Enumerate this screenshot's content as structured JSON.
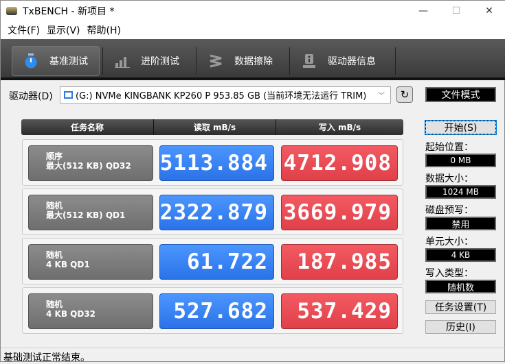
{
  "window": {
    "title": "TxBENCH - 新项目 *",
    "minimize": "—",
    "maximize": "☐",
    "close": "✕"
  },
  "menu": [
    "文件(F)",
    "显示(V)",
    "帮助(H)"
  ],
  "tabs": [
    {
      "label": "基准测试",
      "icon": "stopwatch-icon",
      "active": true
    },
    {
      "label": "进阶测试",
      "icon": "bar-chart-icon"
    },
    {
      "label": "数据擦除",
      "icon": "eraser-icon"
    },
    {
      "label": "驱动器信息",
      "icon": "drive-info-icon"
    }
  ],
  "drive": {
    "label": "驱动器(D)",
    "selected": "(G:) NVMe KINGBANK KP260 P  953.85 GB (当前环境无法运行 TRIM)",
    "refresh_icon": "refresh-icon"
  },
  "table": {
    "headers": [
      "任务名称",
      "读取 mB/s",
      "写入 mB/s"
    ],
    "rows": [
      {
        "name1": "顺序",
        "name2": "最大(512 KB) QD32",
        "read": "5113.884",
        "write": "4712.908"
      },
      {
        "name1": "随机",
        "name2": "最大(512 KB) QD1",
        "read": "2322.879",
        "write": "3669.979"
      },
      {
        "name1": "随机",
        "name2": "4 KB QD1",
        "read": "61.722",
        "write": "187.985"
      },
      {
        "name1": "随机",
        "name2": "4 KB QD32",
        "read": "527.682",
        "write": "537.429"
      }
    ]
  },
  "side": {
    "mode": "文件模式",
    "start": "开始(S)",
    "start_pos_label": "起始位置：",
    "start_pos": "0 MB",
    "data_size_label": "数据大小：",
    "data_size": "1024 MB",
    "prewrite_label": "磁盘预写：",
    "prewrite": "禁用",
    "unit_label": "单元大小：",
    "unit": "4 KB",
    "write_type_label": "写入类型：",
    "write_type": "随机数",
    "task_settings": "任务设置(T)",
    "history": "历史(I)"
  },
  "status": "基础测试正常结束。",
  "colors": {
    "read": "#3a86f5",
    "write": "#e9505a",
    "toolbar": "#4a4a4a"
  }
}
